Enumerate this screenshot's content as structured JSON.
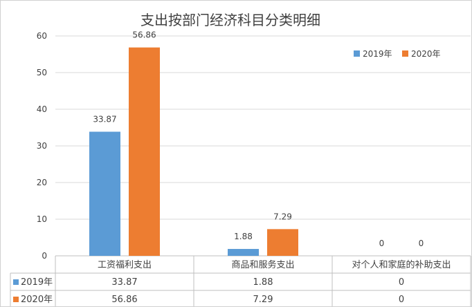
{
  "chart_data": {
    "type": "bar",
    "title": "支出按部门经济科目分类明细",
    "categories": [
      "工资福利支出",
      "商品和服务支出",
      "对个人和家庭的补助支出"
    ],
    "series": [
      {
        "name": "2019年",
        "color": "#5b9bd5",
        "values": [
          33.87,
          1.88,
          0
        ],
        "labels": [
          "33.87",
          "1.88",
          "0"
        ]
      },
      {
        "name": "2020年",
        "color": "#ed7d31",
        "values": [
          56.86,
          7.29,
          0
        ],
        "labels": [
          "56.86",
          "7.29",
          "0"
        ]
      }
    ],
    "ylim": [
      0,
      60
    ],
    "yticks": [
      0,
      10,
      20,
      30,
      40,
      50,
      60
    ],
    "grid": true,
    "legend": "top-right",
    "data_table": true
  }
}
